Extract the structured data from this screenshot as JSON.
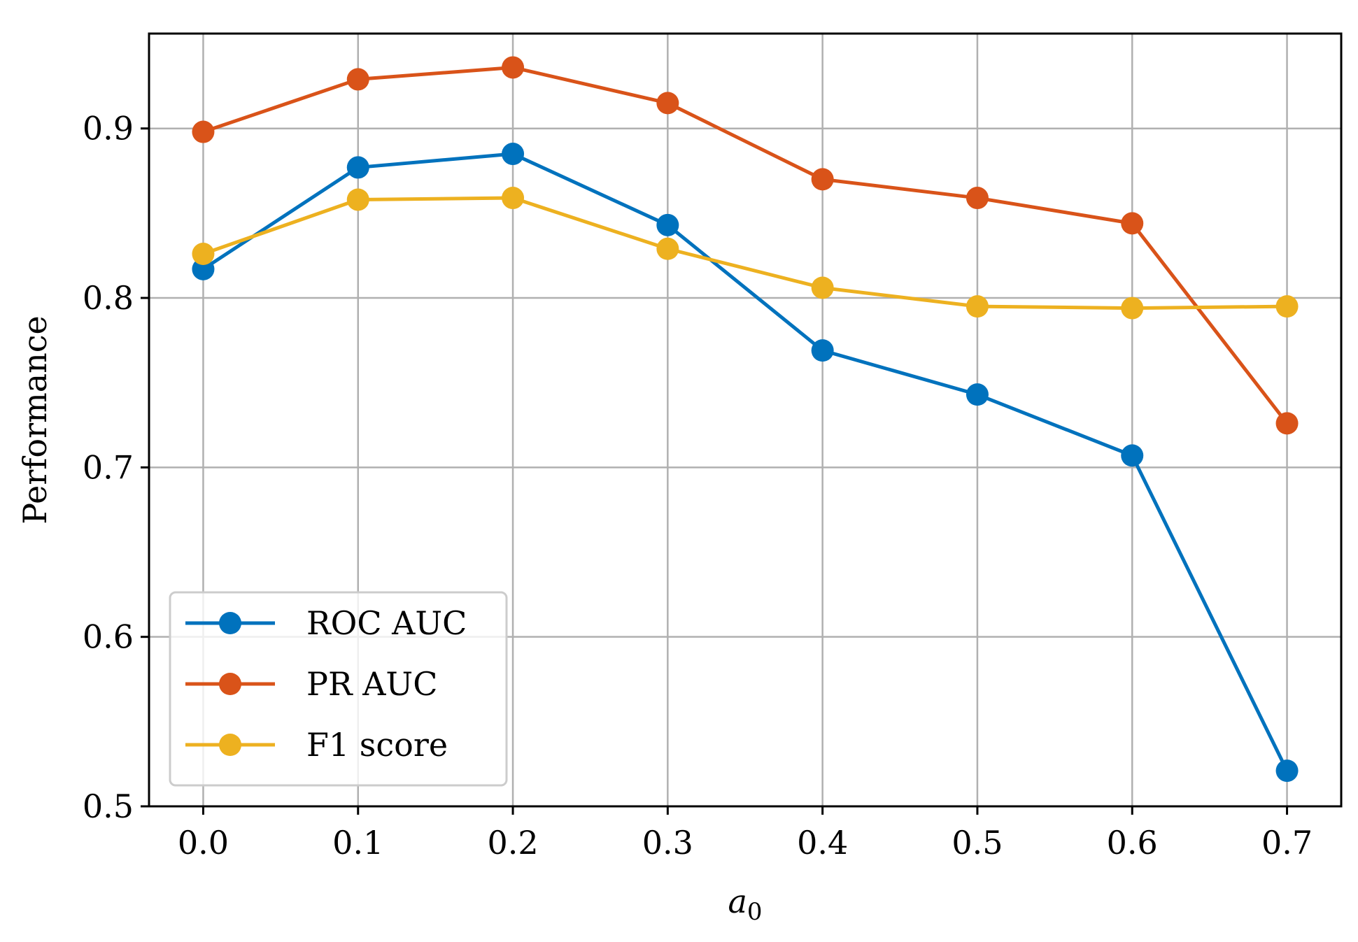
{
  "chart_data": {
    "type": "line",
    "title": "",
    "xlabel": "a",
    "xlabel_subscript": "0",
    "ylabel": "Performance",
    "x": [
      0.0,
      0.1,
      0.2,
      0.3,
      0.4,
      0.5,
      0.6,
      0.7
    ],
    "xticks": [
      "0.0",
      "0.1",
      "0.2",
      "0.3",
      "0.4",
      "0.5",
      "0.6",
      "0.7"
    ],
    "yticks": [
      "0.5",
      "0.6",
      "0.7",
      "0.8",
      "0.9"
    ],
    "xlim": [
      -0.035,
      0.735
    ],
    "ylim": [
      0.5,
      0.956
    ],
    "grid": true,
    "legend_location": "lower-left",
    "series": [
      {
        "name": "ROC AUC",
        "color": "#0072bd",
        "values": [
          0.817,
          0.877,
          0.885,
          0.843,
          0.769,
          0.743,
          0.707,
          0.521
        ]
      },
      {
        "name": "PR AUC",
        "color": "#d95319",
        "values": [
          0.898,
          0.929,
          0.936,
          0.915,
          0.87,
          0.859,
          0.844,
          0.726
        ]
      },
      {
        "name": "F1 score",
        "color": "#edb120",
        "values": [
          0.826,
          0.858,
          0.859,
          0.829,
          0.806,
          0.795,
          0.794,
          0.795
        ]
      }
    ]
  }
}
